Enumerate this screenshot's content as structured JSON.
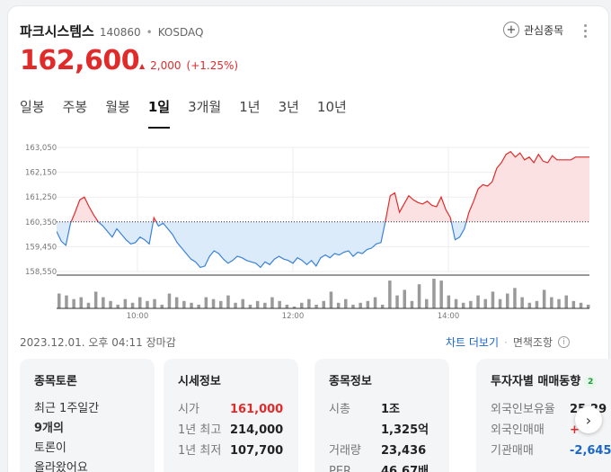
{
  "stock": {
    "name": "파크시스템스",
    "code": "140860",
    "separator": "•",
    "market": "KOSDAQ",
    "price": "162,600",
    "change_arrow": "▲",
    "change": "2,000",
    "change_pct": "(+1.25%)",
    "favorite_label": "관심종목"
  },
  "tabs": [
    "일봉",
    "주봉",
    "월봉",
    "1일",
    "3개월",
    "1년",
    "3년",
    "10년"
  ],
  "active_tab": "1일",
  "footer": {
    "timestamp": "2023.12.01. 오후 04:11 장마감",
    "chart_link": "차트 더보기",
    "sep": "·",
    "condition_link": "면책조항"
  },
  "panels": {
    "discussion": {
      "title": "종목토론",
      "line1": "최근 1주일간",
      "count": "9개의",
      "line3": "토론이",
      "line4": "올라왔어요"
    },
    "market": {
      "title": "시세정보",
      "rows": [
        {
          "label": "시가",
          "value": "161,000"
        },
        {
          "label": "1년 최고",
          "value": "214,000"
        },
        {
          "label": "1년 최저",
          "value": "107,700"
        }
      ]
    },
    "stockinfo": {
      "title": "종목정보",
      "rows": [
        {
          "label": "시총",
          "value": "1조 1,325억"
        },
        {
          "label": "거래량",
          "value": "23,436"
        },
        {
          "label": "PER",
          "value": "46.67배"
        }
      ]
    },
    "investor": {
      "title": "투자자별 매매동향",
      "badge": "2",
      "rows": [
        {
          "label": "외국인보유율",
          "value": "25.29"
        },
        {
          "label": "외국인매매",
          "value": "+"
        },
        {
          "label": "기관매매",
          "value": "-2,645"
        }
      ]
    }
  },
  "chart_data": {
    "type": "area",
    "baseline": 160350,
    "y_ticks": [
      "163,050",
      "162,150",
      "161,250",
      "160,350",
      "159,450",
      "158,550"
    ],
    "ylim": [
      158550,
      163050
    ],
    "x_ticks": [
      "10:00",
      "12:00",
      "14:00"
    ],
    "x_range": [
      "09:00",
      "15:30"
    ],
    "series": [
      {
        "values": [
          160000,
          159650,
          159500,
          160300,
          160700,
          161150,
          161250,
          160900,
          160600,
          160350,
          160200,
          160000,
          159800,
          160100,
          159900,
          159700,
          159550,
          159600,
          159800,
          159700,
          159550,
          160500,
          160200,
          160300,
          160100,
          159900,
          159600,
          159400,
          159200,
          159000,
          158900,
          158700,
          158750,
          159100,
          159300,
          159200,
          159000,
          158850,
          158950,
          159100,
          159050,
          158950,
          158900,
          158850,
          158700,
          158900,
          158800,
          159000,
          159100,
          159000,
          158950,
          158850,
          159050,
          158950,
          158800,
          158950,
          158750,
          159050,
          159150,
          159050,
          159200,
          159150,
          159250,
          159300,
          159100,
          159250,
          159200,
          159350,
          159400,
          159550,
          159600,
          160400,
          161300,
          161400,
          160700,
          161000,
          161300,
          161150,
          161050,
          161000,
          161100,
          160950,
          160900,
          161250,
          160800,
          160500,
          159700,
          159800,
          160100,
          160700,
          161100,
          161550,
          161700,
          161650,
          161800,
          162300,
          162500,
          162800,
          162900,
          162700,
          162850,
          162600,
          162700,
          162500,
          162800,
          162550,
          162500,
          162750,
          162600,
          162600,
          162600,
          162600,
          162700,
          162700,
          162700,
          162700
        ],
        "color": "#e12b2b",
        "below_color": "#3b82d9"
      }
    ],
    "volume": [
      16,
      14,
      10,
      12,
      6,
      18,
      12,
      8,
      4,
      10,
      6,
      12,
      8,
      10,
      4,
      16,
      12,
      8,
      6,
      4,
      12,
      10,
      8,
      14,
      6,
      10,
      4,
      8,
      6,
      12,
      8,
      4,
      2,
      6,
      10,
      4,
      8,
      18,
      6,
      10,
      4,
      6,
      8,
      12,
      4,
      30,
      14,
      20,
      8,
      26,
      10,
      32,
      30,
      14,
      10,
      6,
      8,
      14,
      10,
      18,
      10,
      16,
      22,
      12,
      6,
      8,
      20,
      12,
      10,
      14,
      8,
      6,
      4
    ],
    "grid": true,
    "legend": "none"
  }
}
